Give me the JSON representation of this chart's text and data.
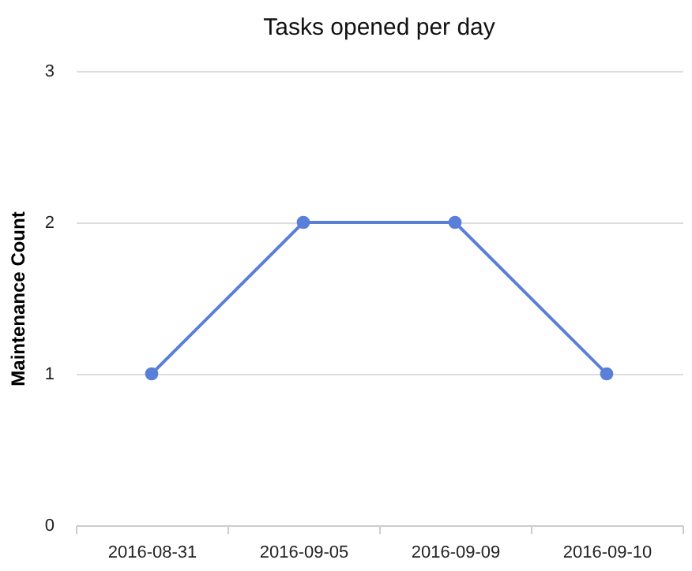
{
  "chart_data": {
    "type": "line",
    "title": "Tasks opened per day",
    "ylabel": "Maintenance Count",
    "categories": [
      "2016-08-31",
      "2016-09-05",
      "2016-09-09",
      "2016-09-10"
    ],
    "series": [
      {
        "color": "#5a7fd8",
        "values": [
          1,
          2,
          2,
          1
        ]
      }
    ],
    "ylim": [
      0,
      3
    ],
    "yticks": [
      0,
      1,
      2,
      3
    ],
    "grid": "y",
    "marker": "circle",
    "line_style": "solid"
  }
}
